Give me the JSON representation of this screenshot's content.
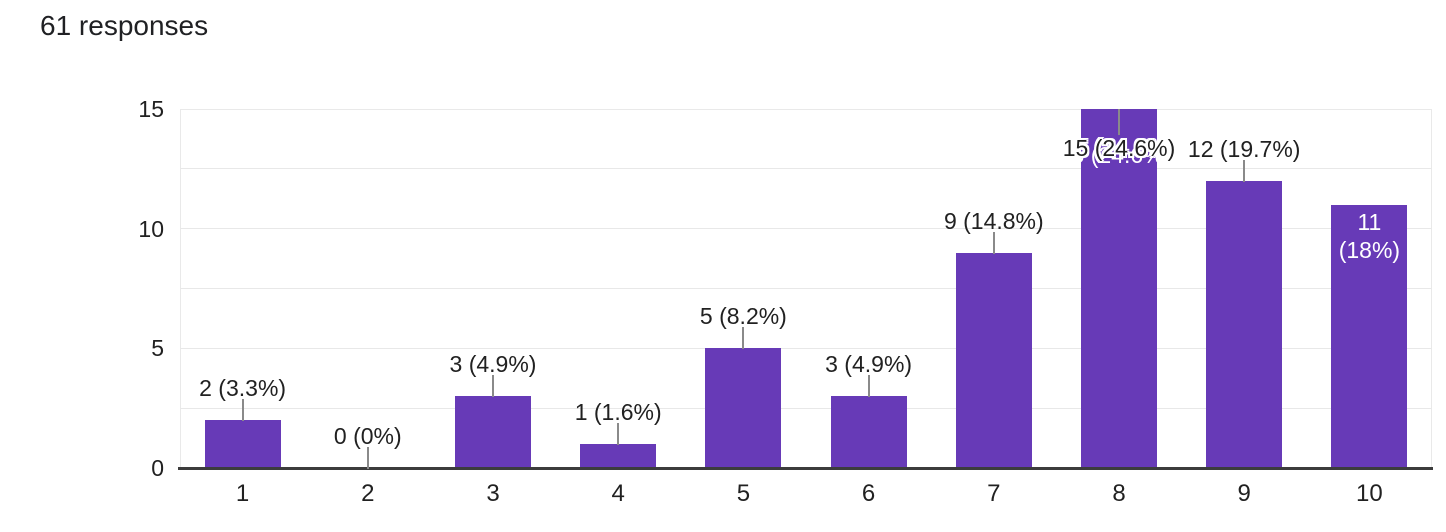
{
  "header": {
    "responses_label": "61 responses"
  },
  "chart_data": {
    "type": "bar",
    "title": "61 responses",
    "categories": [
      "1",
      "2",
      "3",
      "4",
      "5",
      "6",
      "7",
      "8",
      "9",
      "10"
    ],
    "values": [
      2,
      0,
      3,
      1,
      5,
      3,
      9,
      15,
      12,
      11
    ],
    "bar_labels": [
      "2 (3.3%)",
      "0 (0%)",
      "3 (4.9%)",
      "1 (1.6%)",
      "5 (8.2%)",
      "3 (4.9%)",
      "9 (14.8%)",
      "15 (24.6%)",
      "12 (19.7%)",
      "11 (18%)"
    ],
    "bar_label_styles": [
      "above",
      "above",
      "above",
      "above",
      "above",
      "above",
      "above",
      "overlap",
      "above",
      "inside"
    ],
    "inside_label_lines": [
      "11",
      "(18%)"
    ],
    "xlabel": "",
    "ylabel": "",
    "y_ticks": [
      0,
      5,
      10,
      15
    ],
    "ylim": [
      0,
      15
    ],
    "minor_gridline_step": 2.5,
    "grid": true,
    "legend_position": "none",
    "bar_color": "#673ab7",
    "axis_text_color": "#212121",
    "gridline_color": "#e8e8e8",
    "baseline_color": "#3c3c3c",
    "stem_color": "#8a8a8a",
    "inside_label_color": "#ffffff"
  }
}
